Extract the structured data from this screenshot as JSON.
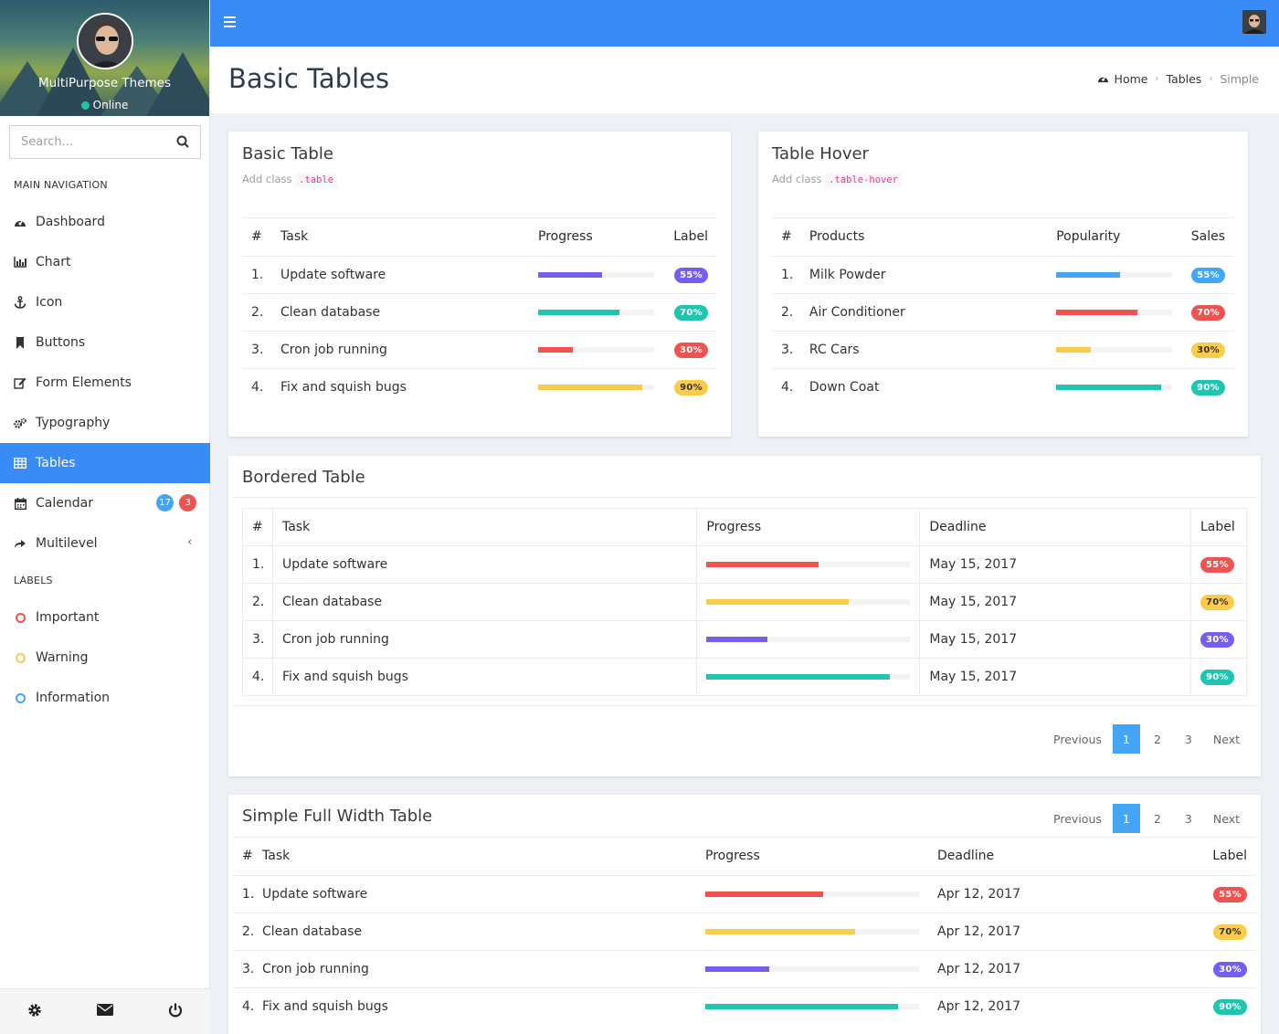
{
  "colors": {
    "primary": "#398bf7",
    "info": "#42a5f5",
    "purple": "#7460ee",
    "teal": "#1ec6b2",
    "red": "#ef5350",
    "yellow": "#fbcc4a"
  },
  "sidebar": {
    "profile_name": "MultiPurpose Themes",
    "status": "Online",
    "search_placeholder": "Search...",
    "main_header": "MAIN NAVIGATION",
    "labels_header": "LABELS",
    "items": [
      {
        "label": "Dashboard",
        "icon": "dashboard-icon"
      },
      {
        "label": "Chart",
        "icon": "bar-chart-icon"
      },
      {
        "label": "Icon",
        "icon": "anchor-icon"
      },
      {
        "label": "Buttons",
        "icon": "bookmark-icon"
      },
      {
        "label": "Form Elements",
        "icon": "edit-icon"
      },
      {
        "label": "Typography",
        "icon": "cogs-icon"
      },
      {
        "label": "Tables",
        "icon": "table-icon",
        "active": true
      },
      {
        "label": "Calendar",
        "icon": "calendar-icon",
        "badges": [
          "17",
          "3"
        ]
      },
      {
        "label": "Multilevel",
        "icon": "share-icon"
      }
    ],
    "labels": [
      {
        "label": "Important",
        "color": "#ef5350"
      },
      {
        "label": "Warning",
        "color": "#fbcc4a"
      },
      {
        "label": "Information",
        "color": "#42a5f5"
      }
    ]
  },
  "header": {
    "page_title": "Basic Tables",
    "breadcrumb": [
      "Home",
      "Tables",
      "Simple"
    ]
  },
  "basic_table": {
    "title": "Basic Table",
    "sub_prefix": "Add class",
    "sub_code": ".table",
    "columns": [
      "#",
      "Task",
      "Progress",
      "Label"
    ],
    "rows": [
      {
        "num": "1.",
        "task": "Update software",
        "progress": 55,
        "label": "55%",
        "color": "purple"
      },
      {
        "num": "2.",
        "task": "Clean database",
        "progress": 70,
        "label": "70%",
        "color": "teal"
      },
      {
        "num": "3.",
        "task": "Cron job running",
        "progress": 30,
        "label": "30%",
        "color": "red"
      },
      {
        "num": "4.",
        "task": "Fix and squish bugs",
        "progress": 90,
        "label": "90%",
        "color": "yellow"
      }
    ]
  },
  "hover_table": {
    "title": "Table Hover",
    "sub_prefix": "Add class",
    "sub_code": ".table-hover",
    "columns": [
      "#",
      "Products",
      "Popularity",
      "Sales"
    ],
    "rows": [
      {
        "num": "1.",
        "task": "Milk Powder",
        "progress": 55,
        "label": "55%",
        "color": "info"
      },
      {
        "num": "2.",
        "task": "Air Conditioner",
        "progress": 70,
        "label": "70%",
        "color": "red"
      },
      {
        "num": "3.",
        "task": "RC Cars",
        "progress": 30,
        "label": "30%",
        "color": "yellow"
      },
      {
        "num": "4.",
        "task": "Down Coat",
        "progress": 90,
        "label": "90%",
        "color": "teal"
      }
    ]
  },
  "bordered_table": {
    "title": "Bordered Table",
    "columns": [
      "#",
      "Task",
      "Progress",
      "Deadline",
      "Label"
    ],
    "rows": [
      {
        "num": "1.",
        "task": "Update software",
        "progress": 55,
        "deadline": "May 15, 2017",
        "label": "55%",
        "color": "red"
      },
      {
        "num": "2.",
        "task": "Clean database",
        "progress": 70,
        "deadline": "May 15, 2017",
        "label": "70%",
        "color": "yellow"
      },
      {
        "num": "3.",
        "task": "Cron job running",
        "progress": 30,
        "deadline": "May 15, 2017",
        "label": "30%",
        "color": "purple"
      },
      {
        "num": "4.",
        "task": "Fix and squish bugs",
        "progress": 90,
        "deadline": "May 15, 2017",
        "label": "90%",
        "color": "teal"
      }
    ],
    "pager": {
      "prev": "Previous",
      "pages": [
        "1",
        "2",
        "3"
      ],
      "next": "Next",
      "active": "1"
    }
  },
  "full_table": {
    "title": "Simple Full Width Table",
    "columns": [
      "#",
      "Task",
      "Progress",
      "Deadline",
      "Label"
    ],
    "rows": [
      {
        "num": "1.",
        "task": "Update software",
        "progress": 55,
        "deadline": "Apr 12, 2017",
        "label": "55%",
        "color": "red"
      },
      {
        "num": "2.",
        "task": "Clean database",
        "progress": 70,
        "deadline": "Apr 12, 2017",
        "label": "70%",
        "color": "yellow"
      },
      {
        "num": "3.",
        "task": "Cron job running",
        "progress": 30,
        "deadline": "Apr 12, 2017",
        "label": "30%",
        "color": "purple"
      },
      {
        "num": "4.",
        "task": "Fix and squish bugs",
        "progress": 90,
        "deadline": "Apr 12, 2017",
        "label": "90%",
        "color": "teal"
      }
    ],
    "pager": {
      "prev": "Previous",
      "pages": [
        "1",
        "2",
        "3"
      ],
      "next": "Next",
      "active": "1"
    }
  },
  "footer_icons": [
    "settings-icon",
    "mail-icon",
    "power-icon"
  ]
}
